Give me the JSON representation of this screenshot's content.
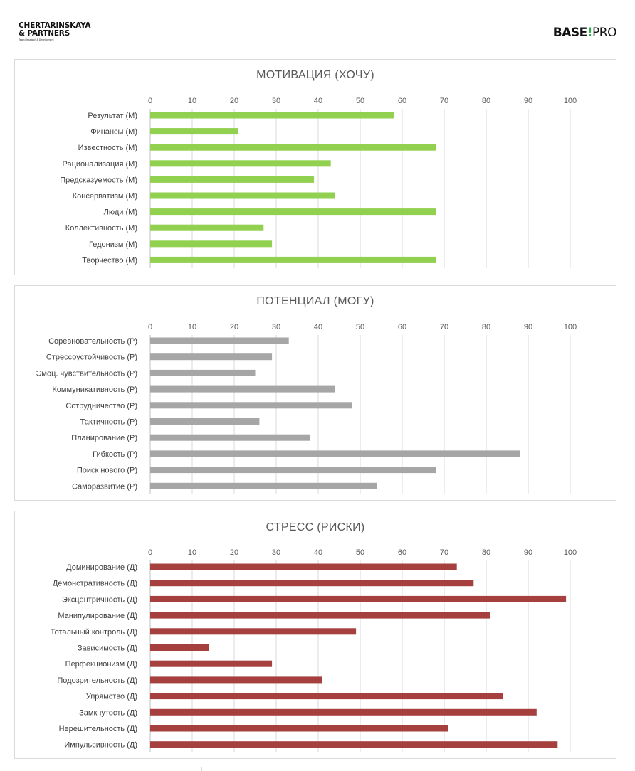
{
  "header": {
    "logo_left": {
      "line1": "CHERTARINSKAYA",
      "line2": "& PARTNERS",
      "tagline": "Team Research & Development"
    },
    "logo_right": {
      "part1": "BASE",
      "bang": "!",
      "part2": "PRO"
    }
  },
  "chart_data": [
    {
      "type": "bar",
      "orientation": "horizontal",
      "title": "МОТИВАЦИЯ (ХОЧУ)",
      "xlim": [
        0,
        100
      ],
      "ticks": [
        0,
        10,
        20,
        30,
        40,
        50,
        60,
        70,
        80,
        90,
        100
      ],
      "grid": true,
      "color": "#92d050",
      "categories": [
        "Результат (М)",
        "Финансы (М)",
        "Известность (М)",
        "Рационализация (М)",
        "Предсказуемость (М)",
        "Консерватизм (М)",
        "Люди (М)",
        "Коллективность (М)",
        "Гедонизм (М)",
        "Творчество (М)"
      ],
      "values": [
        58,
        21,
        68,
        43,
        39,
        44,
        68,
        27,
        29,
        68
      ]
    },
    {
      "type": "bar",
      "orientation": "horizontal",
      "title": "ПОТЕНЦИАЛ (МОГУ)",
      "xlim": [
        0,
        100
      ],
      "ticks": [
        0,
        10,
        20,
        30,
        40,
        50,
        60,
        70,
        80,
        90,
        100
      ],
      "grid": true,
      "color": "#a6a6a6",
      "categories": [
        "Соревновательность (Р)",
        "Стрессоустойчивость (Р)",
        "Эмоц. чувствительность (Р)",
        "Коммуникативность (Р)",
        "Сотрудничество (Р)",
        "Тактичность (Р)",
        "Планирование (Р)",
        "Гибкость (Р)",
        "Поиск нового (Р)",
        "Саморазвитие (Р)"
      ],
      "values": [
        33,
        29,
        25,
        44,
        48,
        26,
        38,
        88,
        68,
        54
      ]
    },
    {
      "type": "bar",
      "orientation": "horizontal",
      "title": "СТРЕСС (РИСКИ)",
      "xlim": [
        0,
        100
      ],
      "ticks": [
        0,
        10,
        20,
        30,
        40,
        50,
        60,
        70,
        80,
        90,
        100
      ],
      "grid": true,
      "color": "#a5403f",
      "categories": [
        "Доминирование (Д)",
        "Демонстративность (Д)",
        "Эксцентричность (Д)",
        "Манипулирование (Д)",
        "Тотальный контроль (Д)",
        "Зависимость (Д)",
        "Перфекционизм (Д)",
        "Подозрительность (Д)",
        "Упрямство (Д)",
        "Замкнутость (Д)",
        "Нерешительность (Д)",
        "Импульсивность (Д)"
      ],
      "values": [
        73,
        77,
        99,
        81,
        49,
        14,
        29,
        41,
        84,
        92,
        71,
        97
      ]
    }
  ]
}
